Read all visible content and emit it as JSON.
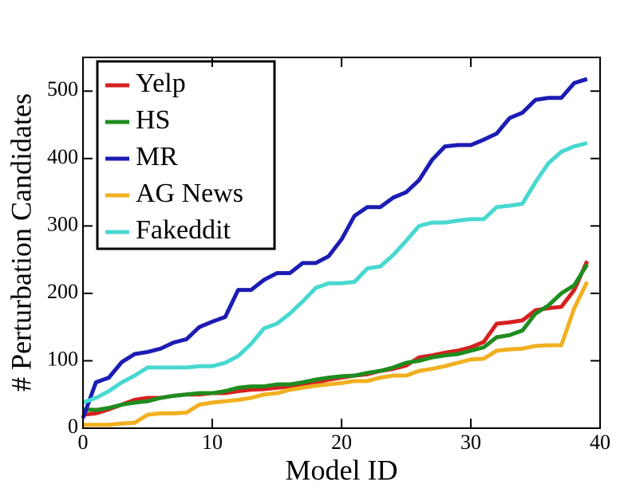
{
  "chart_data": {
    "type": "line",
    "xlabel": "Model ID",
    "ylabel": "# Perturbation Candidates",
    "x": [
      0,
      1,
      2,
      3,
      4,
      5,
      6,
      7,
      8,
      9,
      10,
      11,
      12,
      13,
      14,
      15,
      16,
      17,
      18,
      19,
      20,
      21,
      22,
      23,
      24,
      25,
      26,
      27,
      28,
      29,
      30,
      31,
      32,
      33,
      34,
      35,
      36,
      37,
      38,
      39
    ],
    "series": [
      {
        "name": "Yelp",
        "color": "#d62020",
        "values": [
          20,
          22,
          28,
          35,
          42,
          45,
          45,
          48,
          50,
          50,
          52,
          52,
          55,
          57,
          58,
          60,
          62,
          65,
          68,
          72,
          75,
          78,
          80,
          85,
          88,
          93,
          105,
          108,
          112,
          115,
          120,
          128,
          155,
          157,
          160,
          175,
          178,
          180,
          205,
          248
        ]
      },
      {
        "name": "HS",
        "color": "#1e8c1e",
        "values": [
          28,
          27,
          30,
          35,
          38,
          40,
          45,
          48,
          50,
          52,
          52,
          55,
          60,
          62,
          62,
          65,
          65,
          68,
          72,
          75,
          77,
          78,
          82,
          85,
          90,
          97,
          100,
          105,
          108,
          110,
          115,
          120,
          135,
          138,
          145,
          170,
          182,
          200,
          212,
          243
        ]
      },
      {
        "name": "MR",
        "color": "#1c1cb4",
        "values": [
          15,
          68,
          75,
          98,
          110,
          113,
          118,
          127,
          132,
          150,
          158,
          165,
          205,
          205,
          220,
          230,
          230,
          245,
          245,
          255,
          280,
          315,
          328,
          328,
          342,
          350,
          368,
          398,
          418,
          420,
          420,
          428,
          437,
          460,
          468,
          487,
          490,
          490,
          512,
          518
        ]
      },
      {
        "name": "AG News",
        "color": "#f0b020",
        "values": [
          5,
          5,
          5,
          7,
          8,
          20,
          22,
          22,
          23,
          35,
          38,
          40,
          42,
          45,
          50,
          52,
          57,
          60,
          63,
          65,
          67,
          70,
          70,
          75,
          78,
          78,
          85,
          88,
          92,
          97,
          102,
          103,
          115,
          117,
          118,
          122,
          123,
          123,
          178,
          217
        ]
      },
      {
        "name": "Fakeddit",
        "color": "#48d8d0",
        "values": [
          38,
          45,
          55,
          68,
          78,
          90,
          90,
          90,
          90,
          92,
          92,
          97,
          107,
          125,
          148,
          155,
          170,
          188,
          208,
          215,
          215,
          217,
          237,
          240,
          257,
          278,
          300,
          305,
          305,
          308,
          310,
          310,
          328,
          330,
          333,
          365,
          393,
          410,
          418,
          423
        ]
      }
    ],
    "xlim": [
      0,
      40
    ],
    "xticks": [
      0,
      10,
      20,
      30,
      40
    ],
    "ylim": [
      0,
      550
    ],
    "yticks": [
      0,
      100,
      200,
      300,
      400,
      500
    ],
    "legend": "upper left"
  }
}
